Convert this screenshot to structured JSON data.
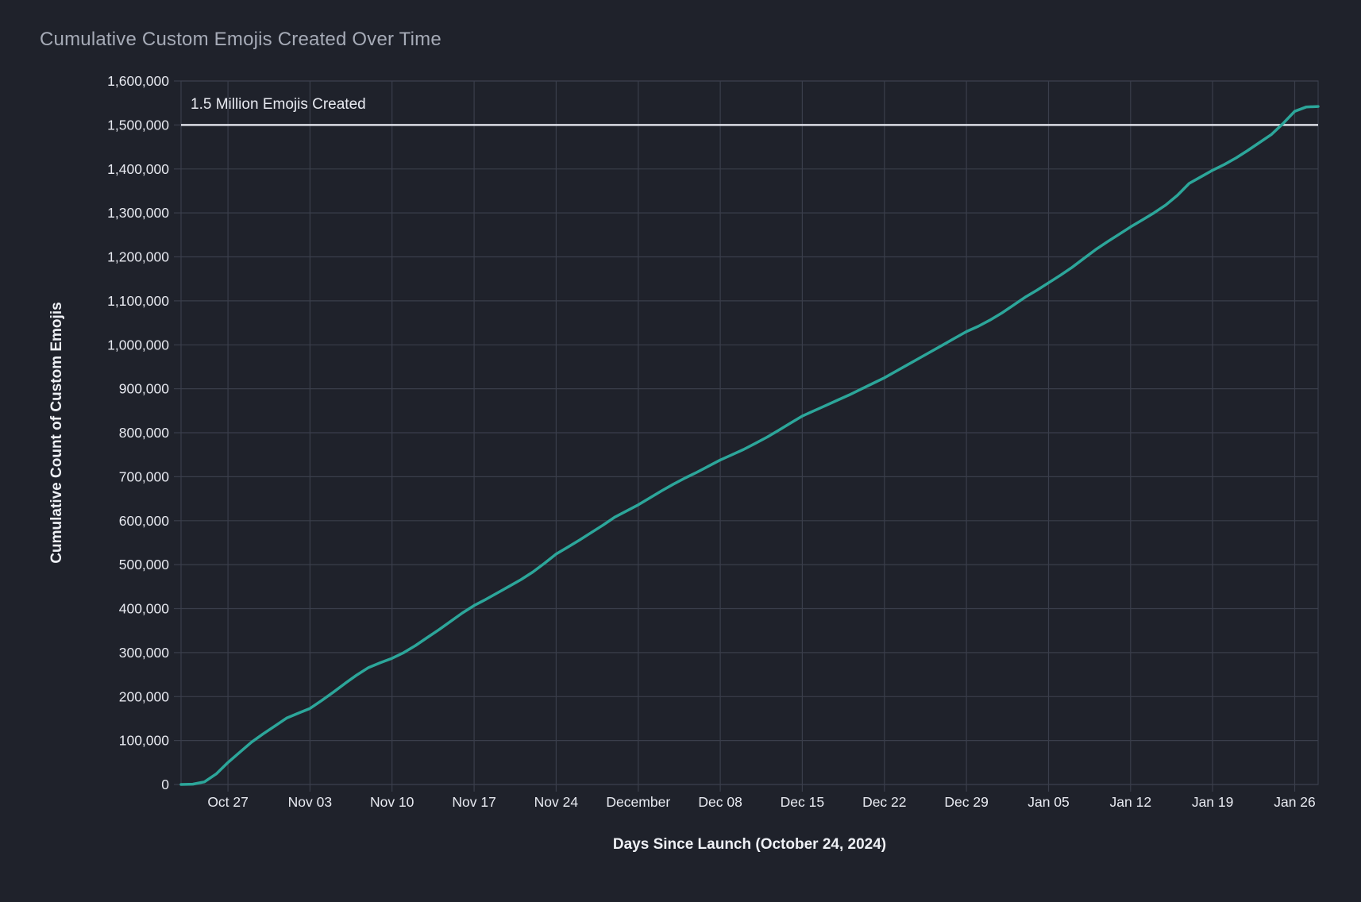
{
  "title": "Cumulative Custom Emojis Created Over Time",
  "annotation": {
    "label": "1.5 Million Emojis Created",
    "value": 1500000
  },
  "colors": {
    "background": "#1F222B",
    "grid": "#3A3E4B",
    "line": "#2CA69A",
    "reference_line": "#DCDEE6",
    "tick_text": "#E8EAF1",
    "axis_title_text": "#EEF0F5",
    "title_text": "#A6ABB7"
  },
  "chart_data": {
    "type": "line",
    "title": "Cumulative Custom Emojis Created Over Time",
    "xlabel": "Days Since Launch (October 24, 2024)",
    "ylabel": "Cumulative Count of Custom Emojis",
    "grid": true,
    "legend": "none",
    "x_range_days": [
      -1,
      96
    ],
    "ylim": [
      0,
      1600000
    ],
    "y_tick_step": 100000,
    "y_ticks": [
      0,
      100000,
      200000,
      300000,
      400000,
      500000,
      600000,
      700000,
      800000,
      900000,
      1000000,
      1100000,
      1200000,
      1300000,
      1400000,
      1500000,
      1600000
    ],
    "x_ticks": [
      {
        "day": 3,
        "label": "Oct 27"
      },
      {
        "day": 10,
        "label": "Nov 03"
      },
      {
        "day": 17,
        "label": "Nov 10"
      },
      {
        "day": 24,
        "label": "Nov 17"
      },
      {
        "day": 31,
        "label": "Nov 24"
      },
      {
        "day": 38,
        "label": "December"
      },
      {
        "day": 45,
        "label": "Dec 08"
      },
      {
        "day": 52,
        "label": "Dec 15"
      },
      {
        "day": 59,
        "label": "Dec 22"
      },
      {
        "day": 66,
        "label": "Dec 29"
      },
      {
        "day": 73,
        "label": "Jan 05"
      },
      {
        "day": 80,
        "label": "Jan 12"
      },
      {
        "day": 87,
        "label": "Jan 19"
      },
      {
        "day": 94,
        "label": "Jan 26"
      }
    ],
    "reference_line": {
      "y": 1500000,
      "label": "1.5 Million Emojis Created"
    },
    "series": [
      {
        "name": "Cumulative Custom Emojis",
        "points": [
          [
            -1,
            0
          ],
          [
            0,
            800
          ],
          [
            1,
            6000
          ],
          [
            2,
            24000
          ],
          [
            3,
            50000
          ],
          [
            4,
            73000
          ],
          [
            5,
            96000
          ],
          [
            6,
            115000
          ],
          [
            7,
            133000
          ],
          [
            8,
            151000
          ],
          [
            9,
            162000
          ],
          [
            10,
            173000
          ],
          [
            11,
            191000
          ],
          [
            12,
            210000
          ],
          [
            13,
            230000
          ],
          [
            14,
            249000
          ],
          [
            15,
            266000
          ],
          [
            16,
            277000
          ],
          [
            17,
            287000
          ],
          [
            18,
            300000
          ],
          [
            19,
            316000
          ],
          [
            20,
            334000
          ],
          [
            21,
            352000
          ],
          [
            22,
            371000
          ],
          [
            23,
            390000
          ],
          [
            24,
            407000
          ],
          [
            25,
            421000
          ],
          [
            26,
            436000
          ],
          [
            27,
            451000
          ],
          [
            28,
            466000
          ],
          [
            29,
            483000
          ],
          [
            30,
            503000
          ],
          [
            31,
            524000
          ],
          [
            32,
            540000
          ],
          [
            33,
            556000
          ],
          [
            34,
            573000
          ],
          [
            35,
            590000
          ],
          [
            36,
            608000
          ],
          [
            37,
            622000
          ],
          [
            38,
            636000
          ],
          [
            39,
            652000
          ],
          [
            40,
            668000
          ],
          [
            41,
            683000
          ],
          [
            42,
            697000
          ],
          [
            43,
            710000
          ],
          [
            44,
            724000
          ],
          [
            45,
            738000
          ],
          [
            46,
            750000
          ],
          [
            47,
            762000
          ],
          [
            48,
            776000
          ],
          [
            49,
            790000
          ],
          [
            50,
            806000
          ],
          [
            51,
            822000
          ],
          [
            52,
            838000
          ],
          [
            53,
            850000
          ],
          [
            54,
            862000
          ],
          [
            55,
            874000
          ],
          [
            56,
            886000
          ],
          [
            57,
            899000
          ],
          [
            58,
            912000
          ],
          [
            59,
            925000
          ],
          [
            60,
            940000
          ],
          [
            61,
            955000
          ],
          [
            62,
            970000
          ],
          [
            63,
            985000
          ],
          [
            64,
            1000000
          ],
          [
            65,
            1015000
          ],
          [
            66,
            1030000
          ],
          [
            67,
            1042000
          ],
          [
            68,
            1056000
          ],
          [
            69,
            1072000
          ],
          [
            70,
            1090000
          ],
          [
            71,
            1108000
          ],
          [
            72,
            1124000
          ],
          [
            73,
            1141000
          ],
          [
            74,
            1158000
          ],
          [
            75,
            1176000
          ],
          [
            76,
            1196000
          ],
          [
            77,
            1216000
          ],
          [
            78,
            1234000
          ],
          [
            79,
            1251000
          ],
          [
            80,
            1268000
          ],
          [
            81,
            1284000
          ],
          [
            82,
            1300000
          ],
          [
            83,
            1318000
          ],
          [
            84,
            1340000
          ],
          [
            85,
            1367000
          ],
          [
            86,
            1382000
          ],
          [
            87,
            1397000
          ],
          [
            88,
            1410000
          ],
          [
            89,
            1425000
          ],
          [
            90,
            1442000
          ],
          [
            91,
            1460000
          ],
          [
            92,
            1478000
          ],
          [
            93,
            1503000
          ],
          [
            94,
            1531000
          ],
          [
            95,
            1541000
          ],
          [
            96,
            1542000
          ]
        ]
      }
    ]
  }
}
